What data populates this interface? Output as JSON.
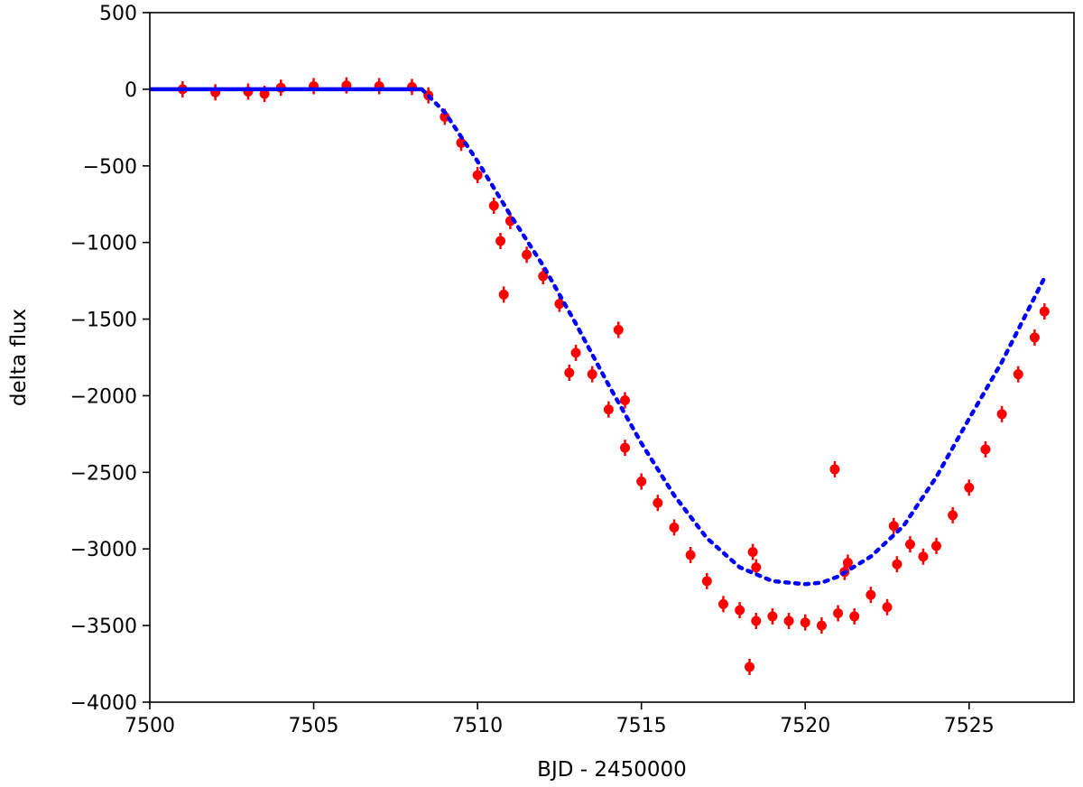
{
  "chart_data": {
    "type": "scatter",
    "xlabel": "BJD - 2450000",
    "ylabel": "delta flux",
    "xlim": [
      7500,
      7528.2
    ],
    "ylim": [
      -4000,
      500
    ],
    "xticks": [
      7500,
      7505,
      7510,
      7515,
      7520,
      7525
    ],
    "yticks": [
      500,
      0,
      -500,
      -1000,
      -1500,
      -2000,
      -2500,
      -3000,
      -3500,
      -4000
    ],
    "xtick_labels": [
      "7500",
      "7505",
      "7510",
      "7515",
      "7520",
      "7525"
    ],
    "ytick_labels": [
      "500",
      "0",
      "−500",
      "−1000",
      "−1500",
      "−2000",
      "−2500",
      "−3000",
      "−3500",
      "−4000"
    ],
    "grid": false,
    "legend": "none",
    "series": [
      {
        "role": "observed",
        "color": "#ff0000",
        "marker": "dot-with-errorbar",
        "x": [
          7501.0,
          7502.0,
          7503.0,
          7503.5,
          7504.0,
          7505.0,
          7506.0,
          7507.0,
          7508.0,
          7508.5,
          7509.0,
          7509.5,
          7510.0,
          7510.5,
          7511.0,
          7511.5,
          7512.0,
          7512.5,
          7513.0,
          7513.5,
          7514.0,
          7514.5,
          7515.0,
          7515.5,
          7516.0,
          7516.5,
          7517.0,
          7517.5,
          7518.0,
          7518.5,
          7519.0,
          7519.5,
          7520.0,
          7520.5,
          7521.0,
          7521.5,
          7522.0,
          7522.5,
          7522.8,
          7523.2,
          7523.6,
          7524.0,
          7524.5,
          7525.0,
          7525.5,
          7526.0,
          7526.5,
          7527.0,
          7527.3
        ],
        "y": [
          0,
          -20,
          -15,
          -30,
          10,
          20,
          25,
          20,
          15,
          -40,
          -180,
          -350,
          -560,
          -760,
          -860,
          -1080,
          -1220,
          -1400,
          -1720,
          -1860,
          -2090,
          -2340,
          -2560,
          -2700,
          -2860,
          -3040,
          -3210,
          -3360,
          -3400,
          -3470,
          -3440,
          -3470,
          -3480,
          -3500,
          -3420,
          -3440,
          -3300,
          -3380,
          -3100,
          -2970,
          -3050,
          -2980,
          -2780,
          -2600,
          -2350,
          -2120,
          -1860,
          -1620,
          -1450
        ]
      },
      {
        "role": "outliers",
        "color": "#ff0000",
        "marker": "dot-with-errorbar",
        "x": [
          7510.7,
          7510.8,
          7512.8,
          7514.3,
          7514.5,
          7518.3,
          7518.4,
          7518.5,
          7520.9,
          7521.2,
          7521.3,
          7522.7
        ],
        "y": [
          -990,
          -1340,
          -1850,
          -1570,
          -2030,
          -3770,
          -3020,
          -3120,
          -2480,
          -3150,
          -3090,
          -2850
        ]
      },
      {
        "role": "model",
        "color": "#0000ff",
        "marker": "dotted-line",
        "x": [
          7500.0,
          7503.0,
          7506.0,
          7508.3,
          7509.0,
          7510.0,
          7511.0,
          7512.0,
          7513.0,
          7514.0,
          7515.0,
          7516.0,
          7517.0,
          7518.0,
          7519.0,
          7520.0,
          7520.5,
          7521.0,
          7522.0,
          7523.0,
          7524.0,
          7525.0,
          7526.0,
          7527.3
        ],
        "y": [
          0,
          0,
          0,
          0,
          -150,
          -470,
          -820,
          -1150,
          -1530,
          -1930,
          -2310,
          -2650,
          -2930,
          -3120,
          -3210,
          -3230,
          -3220,
          -3180,
          -3050,
          -2850,
          -2530,
          -2150,
          -1780,
          -1230
        ]
      }
    ]
  }
}
